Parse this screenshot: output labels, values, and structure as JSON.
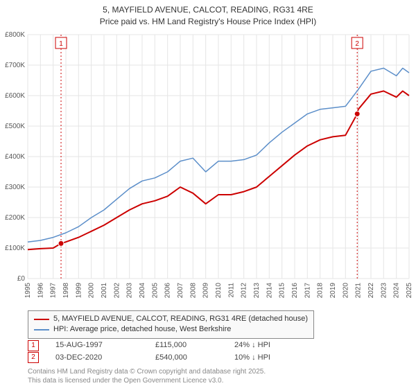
{
  "title_line1": "5, MAYFIELD AVENUE, CALCOT, READING, RG31 4RE",
  "title_line2": "Price paid vs. HM Land Registry's House Price Index (HPI)",
  "chart": {
    "type": "line",
    "background_color": "#fafafa",
    "plot_bg": "#ffffff",
    "grid_color": "#e5e5e5",
    "marker_line_color": "#cc0000",
    "marker_fill": "#ffffff",
    "text_color": "#555555",
    "x_years": [
      1995,
      1996,
      1997,
      1998,
      1999,
      2000,
      2001,
      2002,
      2003,
      2004,
      2005,
      2006,
      2007,
      2008,
      2009,
      2010,
      2011,
      2012,
      2013,
      2014,
      2015,
      2016,
      2017,
      2018,
      2019,
      2020,
      2021,
      2022,
      2023,
      2024,
      2025
    ],
    "y_ticks": [
      0,
      100,
      200,
      300,
      400,
      500,
      600,
      700,
      800
    ],
    "y_tick_prefix": "£",
    "y_tick_suffix": "K",
    "ylim": [
      0,
      800
    ],
    "series": [
      {
        "name": "property",
        "label": "5, MAYFIELD AVENUE, CALCOT, READING, RG31 4RE (detached house)",
        "color": "#cc0000",
        "width": 2,
        "points": [
          [
            1995,
            95
          ],
          [
            1996,
            98
          ],
          [
            1997,
            100
          ],
          [
            1997.62,
            115
          ],
          [
            1998,
            120
          ],
          [
            1999,
            135
          ],
          [
            2000,
            155
          ],
          [
            2001,
            175
          ],
          [
            2002,
            200
          ],
          [
            2003,
            225
          ],
          [
            2004,
            245
          ],
          [
            2005,
            255
          ],
          [
            2006,
            270
          ],
          [
            2007,
            300
          ],
          [
            2008,
            280
          ],
          [
            2009,
            245
          ],
          [
            2010,
            275
          ],
          [
            2011,
            275
          ],
          [
            2012,
            285
          ],
          [
            2013,
            300
          ],
          [
            2014,
            335
          ],
          [
            2015,
            370
          ],
          [
            2016,
            405
          ],
          [
            2017,
            435
          ],
          [
            2018,
            455
          ],
          [
            2019,
            465
          ],
          [
            2020,
            470
          ],
          [
            2020.92,
            540
          ],
          [
            2021,
            555
          ],
          [
            2022,
            605
          ],
          [
            2023,
            615
          ],
          [
            2024,
            595
          ],
          [
            2024.5,
            615
          ],
          [
            2025,
            600
          ]
        ]
      },
      {
        "name": "hpi",
        "label": "HPI: Average price, detached house, West Berkshire",
        "color": "#5b8ec9",
        "width": 1.5,
        "points": [
          [
            1995,
            120
          ],
          [
            1996,
            125
          ],
          [
            1997,
            135
          ],
          [
            1998,
            150
          ],
          [
            1999,
            170
          ],
          [
            2000,
            200
          ],
          [
            2001,
            225
          ],
          [
            2002,
            260
          ],
          [
            2003,
            295
          ],
          [
            2004,
            320
          ],
          [
            2005,
            330
          ],
          [
            2006,
            350
          ],
          [
            2007,
            385
          ],
          [
            2008,
            395
          ],
          [
            2009,
            350
          ],
          [
            2010,
            385
          ],
          [
            2011,
            385
          ],
          [
            2012,
            390
          ],
          [
            2013,
            405
          ],
          [
            2014,
            445
          ],
          [
            2015,
            480
          ],
          [
            2016,
            510
          ],
          [
            2017,
            540
          ],
          [
            2018,
            555
          ],
          [
            2019,
            560
          ],
          [
            2020,
            565
          ],
          [
            2021,
            620
          ],
          [
            2022,
            680
          ],
          [
            2023,
            690
          ],
          [
            2024,
            665
          ],
          [
            2024.5,
            690
          ],
          [
            2025,
            675
          ]
        ]
      }
    ],
    "markers": [
      {
        "id": "1",
        "x": 1997.62,
        "y": 115
      },
      {
        "id": "2",
        "x": 2020.92,
        "y": 540
      }
    ]
  },
  "legend": {
    "items": [
      {
        "color": "#cc0000",
        "label": "5, MAYFIELD AVENUE, CALCOT, READING, RG31 4RE (detached house)"
      },
      {
        "color": "#5b8ec9",
        "label": "HPI: Average price, detached house, West Berkshire"
      }
    ]
  },
  "marker_rows": [
    {
      "badge": "1",
      "date": "15-AUG-1997",
      "price": "£115,000",
      "pct": "24% ↓ HPI"
    },
    {
      "badge": "2",
      "date": "03-DEC-2020",
      "price": "£540,000",
      "pct": "10% ↓ HPI"
    }
  ],
  "footer_line1": "Contains HM Land Registry data © Crown copyright and database right 2025.",
  "footer_line2": "This data is licensed under the Open Government Licence v3.0."
}
